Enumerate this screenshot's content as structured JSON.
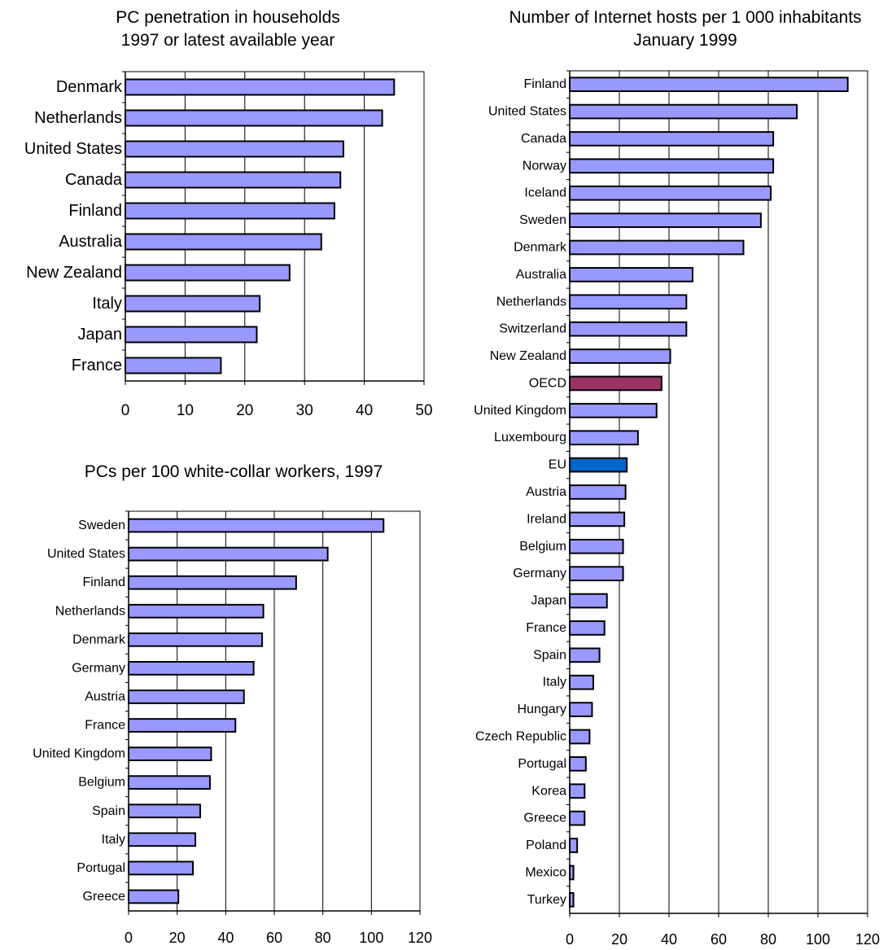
{
  "chart_data": [
    {
      "type": "bar",
      "orientation": "horizontal",
      "title": "PC penetration in households",
      "subtitle": "1997 or latest available year",
      "xlabel": "",
      "ylabel": "",
      "xlim": [
        0,
        50
      ],
      "ticks": [
        "0",
        "10",
        "20",
        "30",
        "40",
        "50"
      ],
      "grid": true,
      "categories": [
        "Denmark",
        "Netherlands",
        "United States",
        "Canada",
        "Finland",
        "Australia",
        "New Zealand",
        "Italy",
        "Japan",
        "France"
      ],
      "values": [
        45,
        43,
        36.5,
        36,
        35,
        32.8,
        27.5,
        22.5,
        22,
        16
      ],
      "bar_color": "#9999ff"
    },
    {
      "type": "bar",
      "orientation": "horizontal",
      "title": "PCs per 100 white-collar workers, 1997",
      "xlabel": "",
      "ylabel": "",
      "xlim": [
        0,
        120
      ],
      "ticks": [
        "0",
        "20",
        "40",
        "60",
        "80",
        "100",
        "120"
      ],
      "grid": true,
      "categories": [
        "Sweden",
        "United States",
        "Finland",
        "Netherlands",
        "Denmark",
        "Germany",
        "Austria",
        "France",
        "United Kingdom",
        "Belgium",
        "Spain",
        "Italy",
        "Portugal",
        "Greece"
      ],
      "values": [
        105,
        82,
        69,
        55.5,
        55,
        51.5,
        47.5,
        44,
        34,
        33.5,
        29.5,
        27.5,
        26.5,
        20.5
      ],
      "bar_color": "#9999ff"
    },
    {
      "type": "bar",
      "orientation": "horizontal",
      "title": "Number of Internet hosts per 1 000 inhabitants",
      "subtitle": "January 1999",
      "xlabel": "",
      "ylabel": "",
      "xlim": [
        0,
        120
      ],
      "ticks": [
        "0",
        "20",
        "40",
        "60",
        "80",
        "100",
        "120"
      ],
      "grid": true,
      "categories": [
        "Finland",
        "United States",
        "Canada",
        "Norway",
        "Iceland",
        "Sweden",
        "Denmark",
        "Australia",
        "Netherlands",
        "Switzerland",
        "New Zealand",
        "OECD",
        "United Kingdom",
        "Luxembourg",
        "EU",
        "Austria",
        "Ireland",
        "Belgium",
        "Germany",
        "Japan",
        "France",
        "Spain",
        "Italy",
        "Hungary",
        "Czech Republic",
        "Portugal",
        "Korea",
        "Greece",
        "Poland",
        "Mexico",
        "Turkey"
      ],
      "values": [
        112,
        91.5,
        82,
        82,
        81,
        77,
        70,
        49.5,
        47,
        47,
        40.5,
        37,
        35,
        27.5,
        23,
        22.5,
        22,
        21.5,
        21.5,
        15,
        14,
        12,
        9.5,
        9,
        8,
        6.5,
        6,
        6,
        3,
        1.5,
        1.5
      ],
      "bar_color": "#9999ff",
      "highlights": {
        "OECD": "#993366",
        "EU": "#0066cc"
      }
    }
  ]
}
